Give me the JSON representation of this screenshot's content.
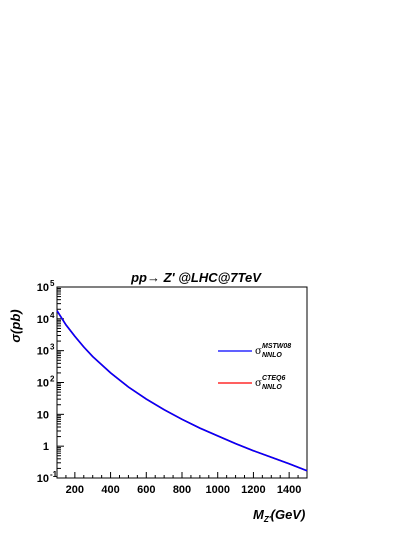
{
  "chart_data": {
    "type": "line",
    "title": "pp→ Z' @LHC@7TeV",
    "xlabel": "M",
    "xlabel_sub": "Z'",
    "xlabel_unit": "(GeV)",
    "ylabel": "σ(pb)",
    "xlim": [
      100,
      1500
    ],
    "ylim": [
      0.1,
      100000
    ],
    "yscale": "log",
    "grid": false,
    "legend_position": "right",
    "x_ticks": [
      "200",
      "400",
      "600",
      "800",
      "1000",
      "1200",
      "1400"
    ],
    "x_tick_values": [
      200,
      400,
      600,
      800,
      1000,
      1200,
      1400
    ],
    "y_ticks": [
      {
        "value": 100000,
        "base": "10",
        "exp": "5"
      },
      {
        "value": 10000,
        "base": "10",
        "exp": "4"
      },
      {
        "value": 1000,
        "base": "10",
        "exp": "3"
      },
      {
        "value": 100,
        "base": "10",
        "exp": "2"
      },
      {
        "value": 10,
        "base": "10",
        "exp": ""
      },
      {
        "value": 1,
        "base": "1",
        "exp": ""
      },
      {
        "value": 0.1,
        "base": "10",
        "exp": "-1"
      }
    ],
    "x": [
      100,
      150,
      200,
      250,
      300,
      400,
      500,
      600,
      700,
      800,
      900,
      1000,
      1100,
      1200,
      1300,
      1400,
      1500
    ],
    "series": [
      {
        "name_symbol": "σ",
        "name_sup": "MSTW08",
        "name_sub": "NNLO",
        "color": "#0000ff",
        "values": [
          18000,
          6500,
          2800,
          1300,
          650,
          200,
          72,
          30,
          14,
          7.0,
          3.7,
          2.1,
          1.2,
          0.72,
          0.45,
          0.28,
          0.17
        ]
      },
      {
        "name_symbol": "σ",
        "name_sup": "CTEQ6",
        "name_sub": "NNLO",
        "color": "#ff0000",
        "values": [
          18000,
          6500,
          2800,
          1300,
          650,
          200,
          72,
          30,
          14,
          7.0,
          3.7,
          2.1,
          1.2,
          0.72,
          0.45,
          0.28,
          0.17
        ]
      }
    ]
  }
}
